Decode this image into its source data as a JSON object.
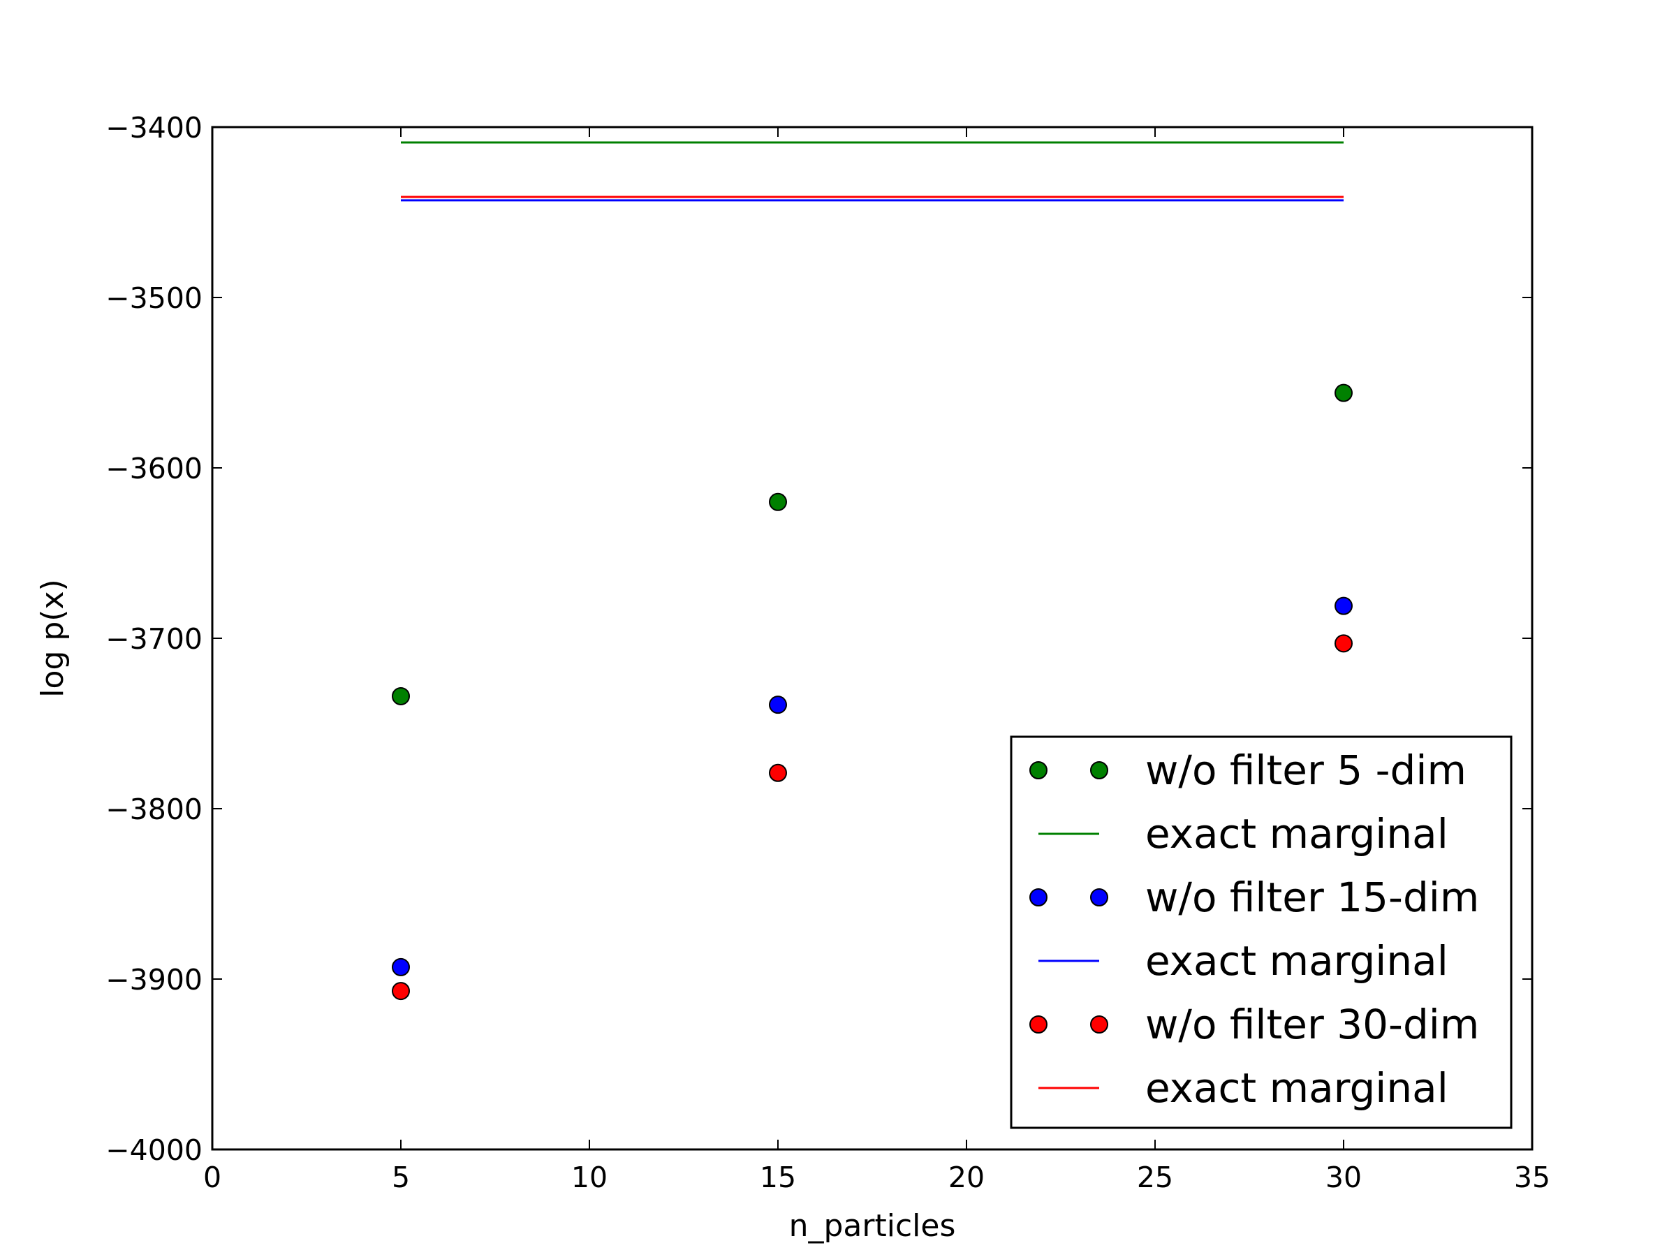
{
  "chart_data": {
    "type": "scatter",
    "title": "",
    "xlabel": "n_particles",
    "ylabel": "log p(x)",
    "xlim": [
      0,
      35
    ],
    "ylim": [
      -4000,
      -3400
    ],
    "xticks": [
      0,
      5,
      10,
      15,
      20,
      25,
      30,
      35
    ],
    "xtick_labels": [
      "0",
      "5",
      "10",
      "15",
      "20",
      "25",
      "30",
      "35"
    ],
    "yticks": [
      -3400,
      -3500,
      -3600,
      -3700,
      -3800,
      -3900,
      -4000
    ],
    "ytick_labels": [
      "−3400",
      "−3500",
      "−3600",
      "−3700",
      "−3800",
      "−3900",
      "−4000"
    ],
    "grid": false,
    "legend_position": "lower-right",
    "series": [
      {
        "name": "w/o filter 5 -dim",
        "kind": "points",
        "color": "#008000",
        "x": [
          5,
          15,
          30
        ],
        "y": [
          -3734,
          -3620,
          -3556
        ]
      },
      {
        "name": "exact marginal",
        "kind": "line",
        "color": "#008000",
        "x": [
          5,
          30
        ],
        "y": [
          -3409,
          -3409
        ]
      },
      {
        "name": "w/o filter 15-dim",
        "kind": "points",
        "color": "#0000ff",
        "x": [
          5,
          15,
          30
        ],
        "y": [
          -3893,
          -3739,
          -3681
        ]
      },
      {
        "name": "exact marginal",
        "kind": "line",
        "color": "#0000ff",
        "x": [
          5,
          30
        ],
        "y": [
          -3443,
          -3443
        ]
      },
      {
        "name": "w/o filter 30-dim",
        "kind": "points",
        "color": "#ff0000",
        "x": [
          5,
          15,
          30
        ],
        "y": [
          -3907,
          -3779,
          -3703
        ]
      },
      {
        "name": "exact marginal",
        "kind": "line",
        "color": "#ff0000",
        "x": [
          5,
          30
        ],
        "y": [
          -3441,
          -3441
        ]
      }
    ]
  }
}
